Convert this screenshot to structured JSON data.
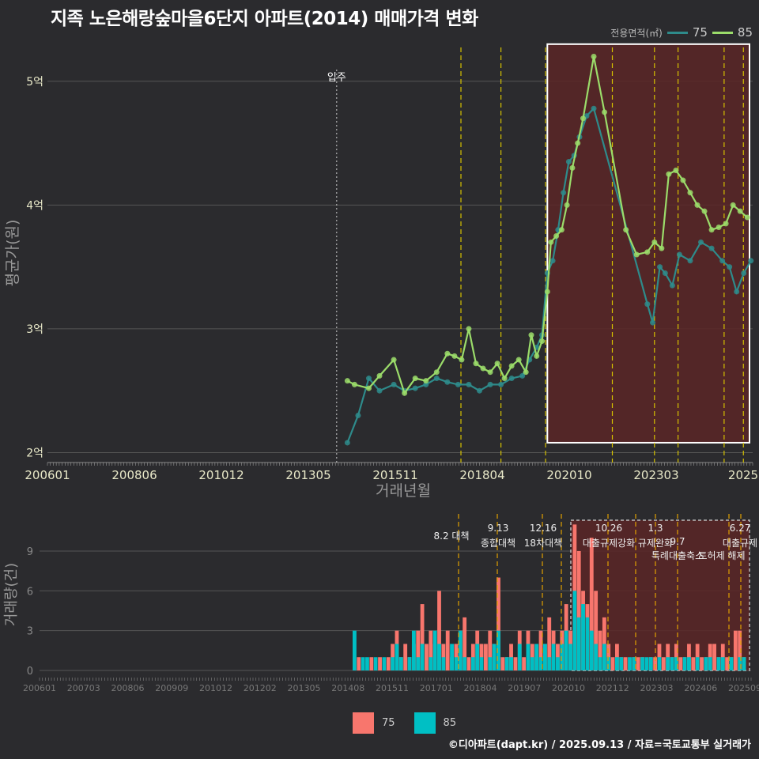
{
  "title": "지족 노은해랑숲마을6단지 아파트(2014) 매매가격 변화",
  "legend": {
    "title": "전용면적(㎡)",
    "items": [
      {
        "label": "75",
        "color": "#2e8b8b"
      },
      {
        "label": "85",
        "color": "#9bdc6a"
      }
    ]
  },
  "bottom_legend": {
    "items": [
      {
        "label": "75",
        "color": "#f8766d"
      },
      {
        "label": "85",
        "color": "#00bfc4"
      }
    ]
  },
  "credit": "©디아파트(dapt.kr) / 2025.09.13 / 자료=국토교통부 실거래가",
  "chart_data": [
    {
      "type": "line",
      "ylabel": "평균가(원)",
      "xlabel": "거래년월",
      "y_ticks": [
        {
          "v": 2,
          "label": "2억"
        },
        {
          "v": 3,
          "label": "3억"
        },
        {
          "v": 4,
          "label": "4억"
        },
        {
          "v": 5,
          "label": "5억"
        }
      ],
      "x_ticks": [
        "200601",
        "200806",
        "201012",
        "201305",
        "201511",
        "201804",
        "202010",
        "202303",
        "2025"
      ],
      "ylim": [
        1.92,
        5.35
      ],
      "xlim": [
        2006.0,
        2025.75
      ],
      "movein": {
        "x": 2014.1,
        "label": "입주"
      },
      "policy_lines": [
        2017.58,
        2018.7,
        2019.95,
        2021.82,
        2023.0,
        2023.66,
        2024.95,
        2025.49
      ],
      "highlight": {
        "x0": 2020.0,
        "x1": 2025.75,
        "y0": 2.08,
        "y1": 5.3
      },
      "series": [
        {
          "name": "75",
          "x": [
            2014.4,
            2014.7,
            2015.0,
            2015.3,
            2015.7,
            2016.0,
            2016.3,
            2016.6,
            2016.9,
            2017.2,
            2017.5,
            2017.8,
            2018.1,
            2018.4,
            2018.7,
            2019.0,
            2019.3,
            2019.5,
            2019.7,
            2019.85,
            2020.0,
            2020.15,
            2020.3,
            2020.45,
            2020.6,
            2020.75,
            2020.9,
            2021.1,
            2021.3,
            2022.8,
            2022.95,
            2023.15,
            2023.3,
            2023.5,
            2023.7,
            2024.0,
            2024.3,
            2024.6,
            2024.9,
            2025.1,
            2025.3,
            2025.5,
            2025.7
          ],
          "values": [
            2.08,
            2.3,
            2.6,
            2.5,
            2.55,
            2.5,
            2.52,
            2.55,
            2.6,
            2.57,
            2.55,
            2.55,
            2.5,
            2.55,
            2.55,
            2.6,
            2.62,
            2.75,
            2.85,
            2.95,
            3.45,
            3.55,
            3.8,
            4.1,
            4.35,
            4.4,
            4.55,
            4.72,
            4.78,
            3.2,
            3.05,
            3.5,
            3.45,
            3.35,
            3.6,
            3.55,
            3.7,
            3.65,
            3.55,
            3.5,
            3.3,
            3.45,
            3.55
          ]
        },
        {
          "name": "85",
          "x": [
            2014.4,
            2014.6,
            2015.0,
            2015.3,
            2015.7,
            2016.0,
            2016.3,
            2016.6,
            2016.9,
            2017.2,
            2017.4,
            2017.6,
            2017.8,
            2018.0,
            2018.2,
            2018.4,
            2018.6,
            2018.8,
            2019.0,
            2019.2,
            2019.4,
            2019.55,
            2019.7,
            2019.85,
            2020.0,
            2020.1,
            2020.25,
            2020.4,
            2020.55,
            2020.7,
            2020.85,
            2021.0,
            2021.3,
            2021.6,
            2022.2,
            2022.5,
            2022.8,
            2023.0,
            2023.2,
            2023.4,
            2023.6,
            2023.8,
            2024.0,
            2024.2,
            2024.4,
            2024.6,
            2024.8,
            2025.0,
            2025.2,
            2025.4,
            2025.6
          ],
          "values": [
            2.58,
            2.55,
            2.52,
            2.62,
            2.75,
            2.48,
            2.6,
            2.58,
            2.65,
            2.8,
            2.78,
            2.75,
            3.0,
            2.72,
            2.68,
            2.65,
            2.72,
            2.6,
            2.7,
            2.75,
            2.65,
            2.95,
            2.78,
            2.9,
            3.3,
            3.7,
            3.75,
            3.8,
            4.0,
            4.3,
            4.5,
            4.7,
            5.2,
            4.75,
            3.8,
            3.6,
            3.62,
            3.7,
            3.65,
            4.25,
            4.28,
            4.2,
            4.1,
            4.0,
            3.95,
            3.8,
            3.82,
            3.85,
            4.0,
            3.95,
            3.9
          ]
        }
      ]
    },
    {
      "type": "bar",
      "ylabel": "거래량(건)",
      "y_ticks": [
        0,
        3,
        6,
        9
      ],
      "x_ticks": [
        "200601",
        "200703",
        "200806",
        "200909",
        "201012",
        "201202",
        "201305",
        "201408",
        "201511",
        "201701",
        "201804",
        "201907",
        "202010",
        "202112",
        "202303",
        "202406",
        "202509"
      ],
      "ylim": [
        0,
        11.5
      ],
      "policy_labels": [
        {
          "date": "8.2",
          "label": "대책"
        },
        {
          "date": "9.13",
          "label": "종합대책"
        },
        {
          "date": "12.16",
          "label": "18차대책"
        },
        {
          "date": "10.26",
          "label": "대출규제강화"
        },
        {
          "date": "1.3",
          "label": "규제완화"
        },
        {
          "date": "9.7",
          "label": "특례대출축소"
        },
        {
          "date": "6.27",
          "label": "대출규제"
        },
        {
          "date": "",
          "label": "토허제 해제"
        }
      ],
      "series": [
        {
          "name": "75",
          "values": [
            0,
            1,
            0,
            0,
            1,
            0,
            1,
            0,
            1,
            2,
            3,
            1,
            2,
            1,
            2,
            3,
            5,
            2,
            3,
            2,
            6,
            2,
            3,
            1,
            2,
            3,
            4,
            1,
            2,
            3,
            2,
            2,
            3,
            2,
            7,
            1,
            1,
            2,
            1,
            3,
            1,
            3,
            2,
            1,
            3,
            2,
            4,
            3,
            2,
            3,
            5,
            3,
            11,
            9,
            6,
            5,
            10,
            6,
            3,
            4,
            2,
            1,
            2,
            1,
            1,
            0,
            1,
            1,
            1,
            0,
            1,
            1,
            2,
            1,
            2,
            1,
            2,
            1,
            1,
            2,
            1,
            2,
            1,
            1,
            2,
            2,
            1,
            2,
            1,
            1,
            3,
            3,
            1
          ]
        },
        {
          "name": "85",
          "values": [
            3,
            0,
            1,
            1,
            0,
            1,
            0,
            1,
            0,
            1,
            2,
            1,
            0,
            1,
            3,
            1,
            2,
            0,
            1,
            3,
            2,
            1,
            0,
            2,
            1,
            3,
            1,
            0,
            1,
            2,
            1,
            0,
            1,
            2,
            3,
            0,
            1,
            1,
            0,
            2,
            0,
            2,
            1,
            2,
            1,
            2,
            1,
            2,
            1,
            2,
            3,
            2,
            6,
            4,
            5,
            4,
            3,
            2,
            1,
            2,
            1,
            0,
            1,
            1,
            0,
            1,
            1,
            0,
            1,
            1,
            1,
            0,
            1,
            0,
            1,
            1,
            1,
            0,
            1,
            1,
            0,
            1,
            0,
            1,
            1,
            0,
            1,
            1,
            0,
            1,
            0,
            1,
            1
          ]
        }
      ]
    }
  ]
}
